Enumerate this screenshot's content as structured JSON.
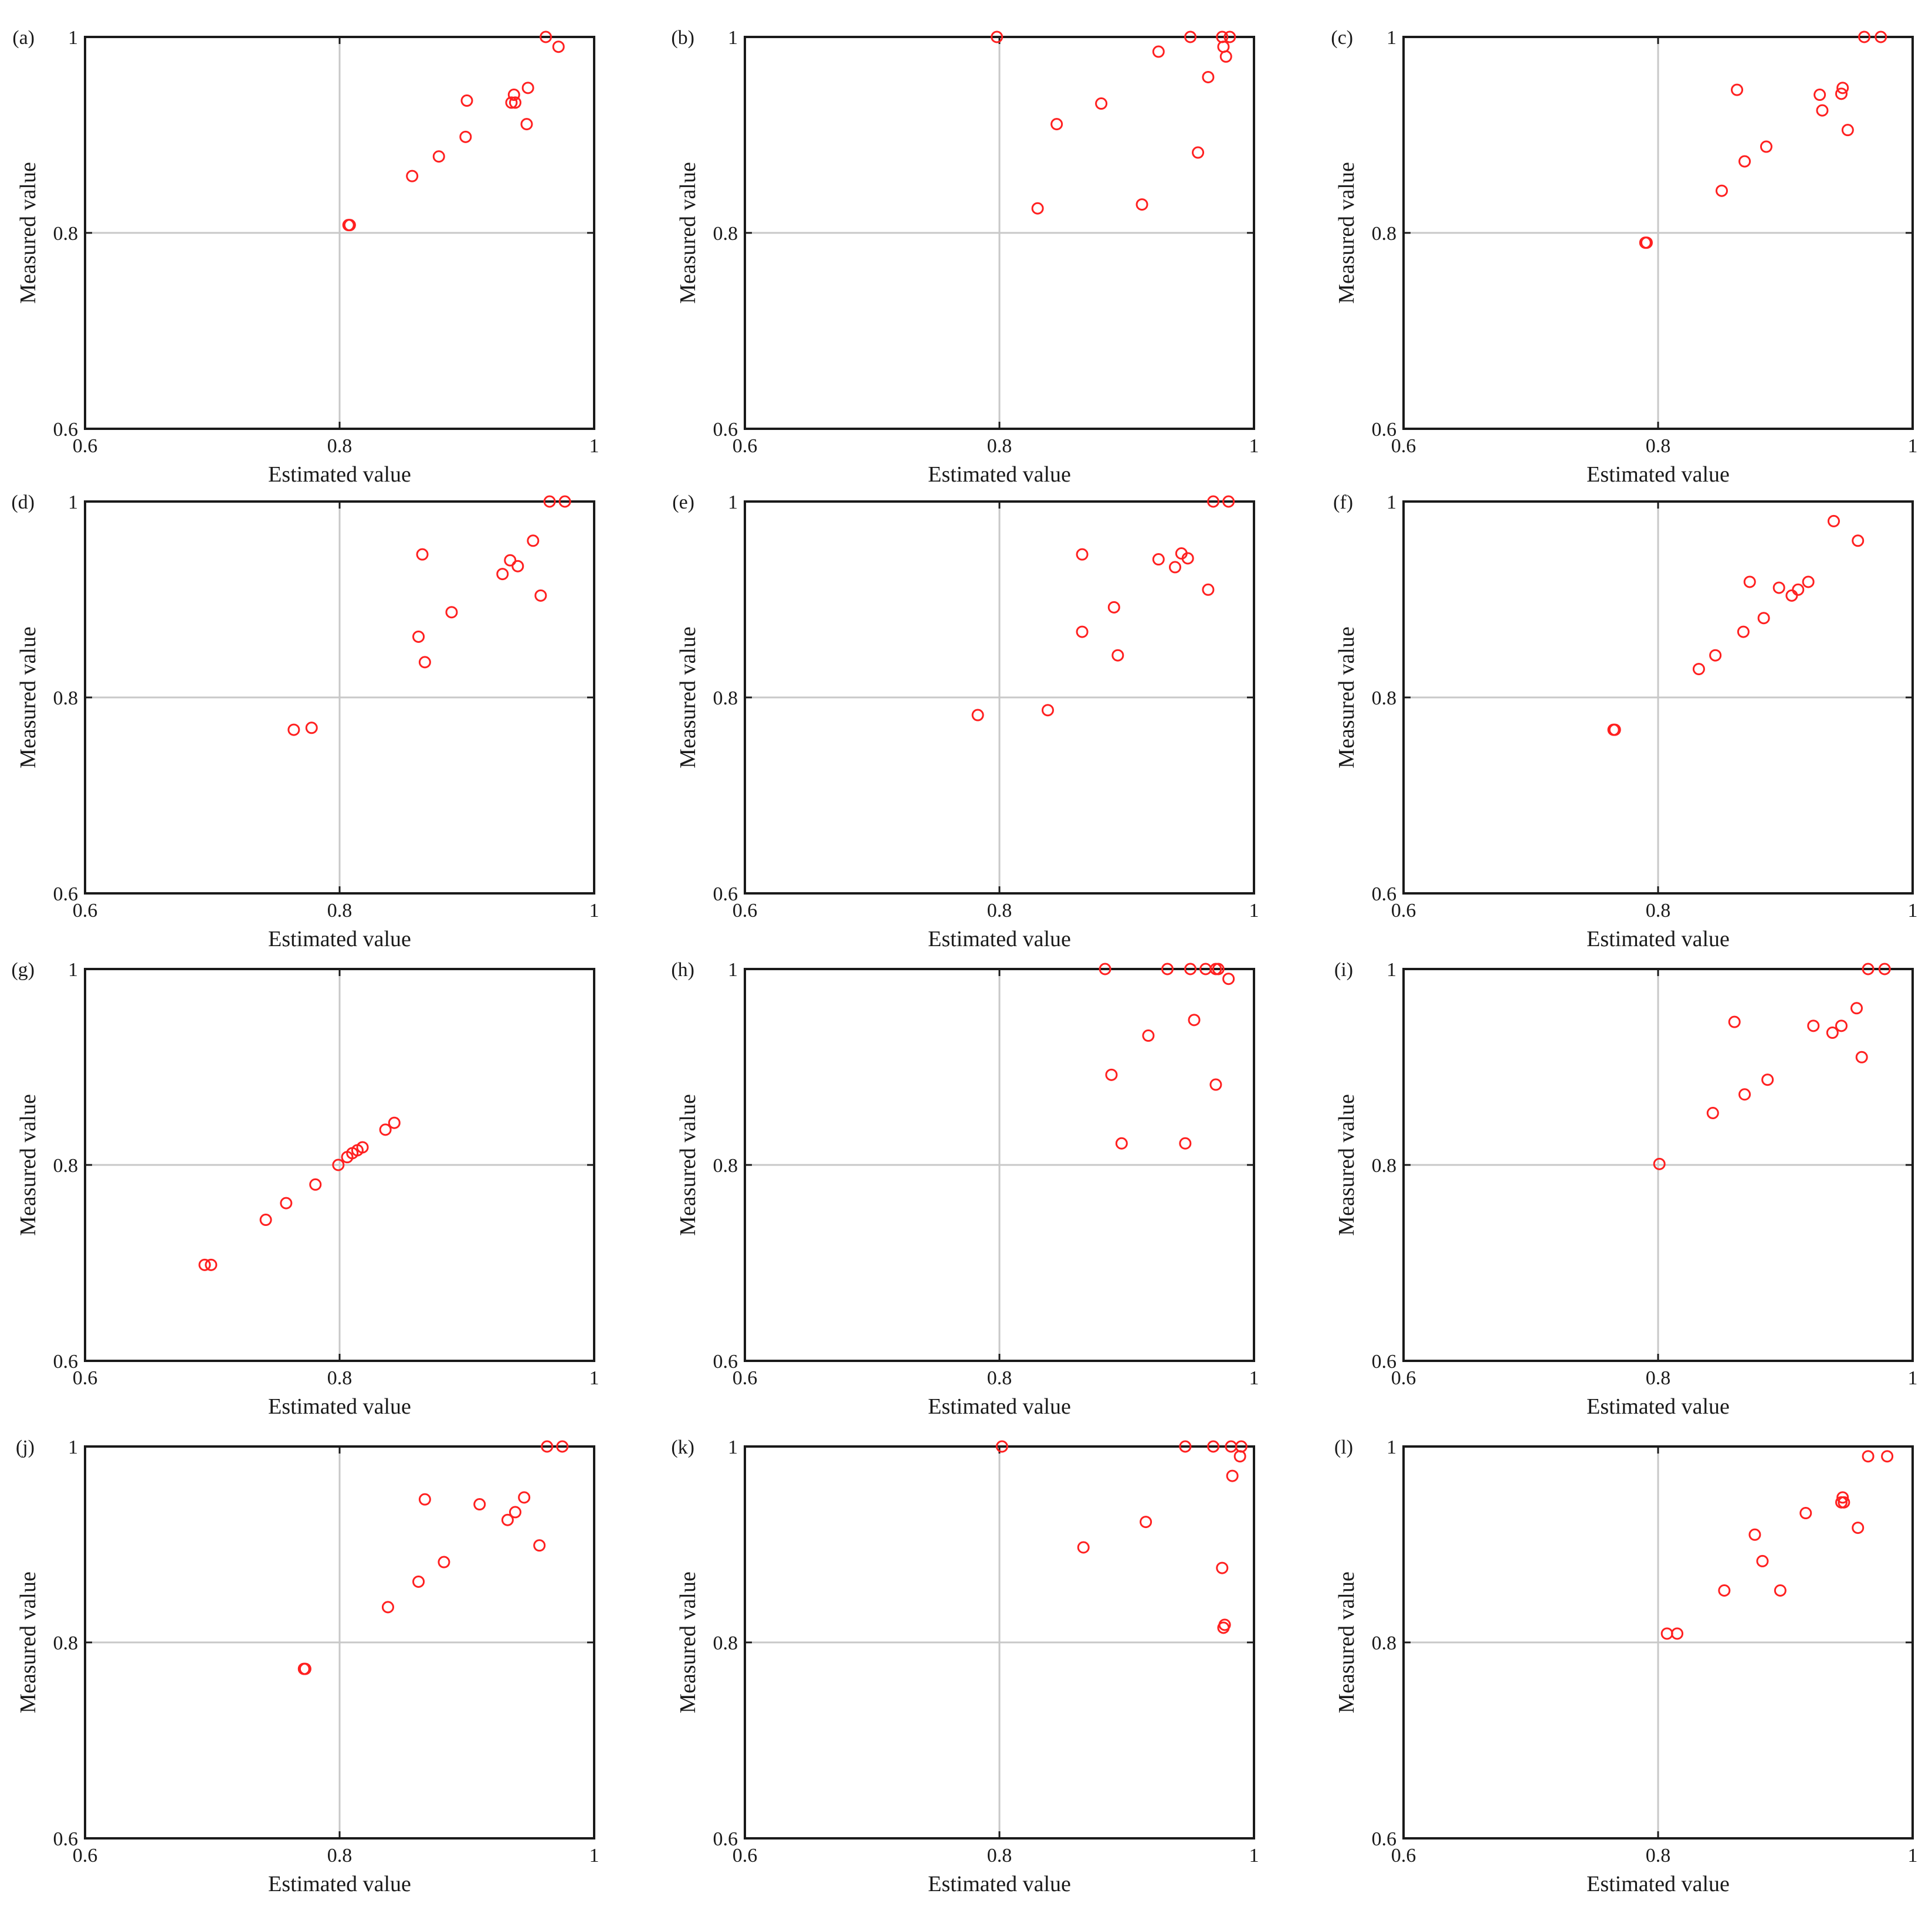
{
  "style": {
    "marker_color": "#ff2020",
    "grid_color": "#c8c8c8",
    "frame_color": "#1a1a1a"
  },
  "chart_data": [
    {
      "label": "(a)",
      "type": "scatter",
      "xlabel": "Estimated value",
      "ylabel": "Measured value",
      "xlim": [
        0.6,
        1
      ],
      "ylim": [
        0.6,
        1
      ],
      "xticks": [
        "0.6",
        "0.8",
        "1"
      ],
      "yticks": [
        "0.6",
        "0.8",
        "1"
      ],
      "grid": true,
      "x": [
        0.962,
        0.972,
        0.9,
        0.937,
        0.948,
        0.935,
        0.938,
        0.947,
        0.899,
        0.878,
        0.857,
        0.807,
        0.808
      ],
      "y": [
        1.0,
        0.99,
        0.935,
        0.941,
        0.948,
        0.933,
        0.933,
        0.911,
        0.898,
        0.878,
        0.858,
        0.808,
        0.808
      ]
    },
    {
      "label": "(b)",
      "type": "scatter",
      "xlabel": "Estimated value",
      "ylabel": "Measured value",
      "xlim": [
        0.6,
        1
      ],
      "ylim": [
        0.6,
        1
      ],
      "xticks": [
        "0.6",
        "0.8",
        "1"
      ],
      "yticks": [
        "0.6",
        "0.8",
        "1"
      ],
      "grid": true,
      "x": [
        0.798,
        0.95,
        0.975,
        0.981,
        0.976,
        0.978,
        0.925,
        0.964,
        0.88,
        0.845,
        0.956,
        0.83,
        0.912
      ],
      "y": [
        1.0,
        1.0,
        1.0,
        1.0,
        0.99,
        0.98,
        0.985,
        0.959,
        0.932,
        0.911,
        0.882,
        0.825,
        0.829
      ]
    },
    {
      "label": "(c)",
      "type": "scatter",
      "xlabel": "Estimated value",
      "ylabel": "Measured value",
      "xlim": [
        0.6,
        1
      ],
      "ylim": [
        0.6,
        1
      ],
      "xticks": [
        "0.6",
        "0.8",
        "1"
      ],
      "yticks": [
        "0.6",
        "0.8",
        "1"
      ],
      "grid": true,
      "x": [
        0.962,
        0.975,
        0.862,
        0.945,
        0.927,
        0.944,
        0.929,
        0.949,
        0.885,
        0.868,
        0.85,
        0.79,
        0.791
      ],
      "y": [
        1.0,
        1.0,
        0.946,
        0.948,
        0.941,
        0.942,
        0.925,
        0.905,
        0.888,
        0.873,
        0.843,
        0.79,
        0.79
      ]
    },
    {
      "label": "(d)",
      "type": "scatter",
      "xlabel": "Estimated value",
      "ylabel": "Measured value",
      "xlim": [
        0.6,
        1
      ],
      "ylim": [
        0.6,
        1
      ],
      "xticks": [
        "0.6",
        "0.8",
        "1"
      ],
      "yticks": [
        "0.6",
        "0.8",
        "1"
      ],
      "grid": true,
      "x": [
        0.965,
        0.977,
        0.865,
        0.952,
        0.934,
        0.94,
        0.928,
        0.958,
        0.888,
        0.862,
        0.867,
        0.764,
        0.778
      ],
      "y": [
        1.0,
        1.0,
        0.946,
        0.96,
        0.94,
        0.934,
        0.926,
        0.904,
        0.887,
        0.862,
        0.836,
        0.767,
        0.769
      ]
    },
    {
      "label": "(e)",
      "type": "scatter",
      "xlabel": "Estimated value",
      "ylabel": "Measured value",
      "xlim": [
        0.6,
        1
      ],
      "ylim": [
        0.6,
        1
      ],
      "xticks": [
        "0.6",
        "0.8",
        "1"
      ],
      "yticks": [
        "0.6",
        "0.8",
        "1"
      ],
      "grid": true,
      "x": [
        0.968,
        0.98,
        0.865,
        0.943,
        0.948,
        0.925,
        0.938,
        0.964,
        0.89,
        0.865,
        0.893,
        0.783,
        0.838
      ],
      "y": [
        1.0,
        1.0,
        0.946,
        0.947,
        0.942,
        0.941,
        0.933,
        0.91,
        0.892,
        0.867,
        0.843,
        0.782,
        0.787
      ]
    },
    {
      "label": "(f)",
      "type": "scatter",
      "xlabel": "Estimated value",
      "ylabel": "Measured value",
      "xlim": [
        0.6,
        1
      ],
      "ylim": [
        0.6,
        1
      ],
      "xticks": [
        "0.6",
        "0.8",
        "1"
      ],
      "yticks": [
        "0.6",
        "0.8",
        "1"
      ],
      "grid": true,
      "x": [
        0.938,
        0.957,
        0.872,
        0.918,
        0.895,
        0.91,
        0.905,
        0.883,
        0.867,
        0.845,
        0.832,
        0.766,
        0.765
      ],
      "y": [
        0.98,
        0.96,
        0.918,
        0.918,
        0.912,
        0.91,
        0.904,
        0.881,
        0.867,
        0.843,
        0.829,
        0.767,
        0.767
      ]
    },
    {
      "label": "(g)",
      "type": "scatter",
      "xlabel": "Estimated value",
      "ylabel": "Measured value",
      "xlim": [
        0.6,
        1
      ],
      "ylim": [
        0.6,
        1
      ],
      "xticks": [
        "0.6",
        "0.8",
        "1"
      ],
      "yticks": [
        "0.6",
        "0.8",
        "1"
      ],
      "grid": true,
      "x": [
        0.843,
        0.836,
        0.818,
        0.814,
        0.81,
        0.806,
        0.799,
        0.781,
        0.758,
        0.742,
        0.699,
        0.694
      ],
      "y": [
        0.843,
        0.836,
        0.818,
        0.815,
        0.812,
        0.808,
        0.8,
        0.78,
        0.761,
        0.744,
        0.698,
        0.698
      ]
    },
    {
      "label": "(h)",
      "type": "scatter",
      "xlabel": "Estimated value",
      "ylabel": "Measured value",
      "xlim": [
        0.6,
        1
      ],
      "ylim": [
        0.6,
        1
      ],
      "xticks": [
        "0.6",
        "0.8",
        "1"
      ],
      "yticks": [
        "0.6",
        "0.8",
        "1"
      ],
      "grid": true,
      "x": [
        0.883,
        0.932,
        0.95,
        0.962,
        0.97,
        0.972,
        0.98,
        0.953,
        0.917,
        0.888,
        0.97,
        0.896,
        0.946
      ],
      "y": [
        1.0,
        1.0,
        1.0,
        1.0,
        1.0,
        1.0,
        0.99,
        0.948,
        0.932,
        0.892,
        0.882,
        0.822,
        0.822
      ]
    },
    {
      "label": "(i)",
      "type": "scatter",
      "xlabel": "Estimated value",
      "ylabel": "Measured value",
      "xlim": [
        0.6,
        1
      ],
      "ylim": [
        0.6,
        1
      ],
      "xticks": [
        "0.6",
        "0.8",
        "1"
      ],
      "yticks": [
        "0.6",
        "0.8",
        "1"
      ],
      "grid": true,
      "x": [
        0.965,
        0.978,
        0.86,
        0.956,
        0.922,
        0.944,
        0.937,
        0.96,
        0.886,
        0.868,
        0.843,
        0.801
      ],
      "y": [
        1.0,
        1.0,
        0.946,
        0.96,
        0.942,
        0.942,
        0.935,
        0.91,
        0.887,
        0.872,
        0.853,
        0.801
      ]
    },
    {
      "label": "(j)",
      "type": "scatter",
      "xlabel": "Estimated value",
      "ylabel": "Measured value",
      "xlim": [
        0.6,
        1
      ],
      "ylim": [
        0.6,
        1
      ],
      "xticks": [
        "0.6",
        "0.8",
        "1"
      ],
      "yticks": [
        "0.6",
        "0.8",
        "1"
      ],
      "grid": true,
      "x": [
        0.963,
        0.975,
        0.867,
        0.945,
        0.91,
        0.938,
        0.932,
        0.957,
        0.882,
        0.862,
        0.838,
        0.772,
        0.773
      ],
      "y": [
        1.0,
        1.0,
        0.946,
        0.948,
        0.941,
        0.933,
        0.925,
        0.899,
        0.882,
        0.862,
        0.836,
        0.773,
        0.773
      ]
    },
    {
      "label": "(k)",
      "type": "scatter",
      "xlabel": "Estimated value",
      "ylabel": "Measured value",
      "xlim": [
        0.6,
        1
      ],
      "ylim": [
        0.6,
        1
      ],
      "xticks": [
        "0.6",
        "0.8",
        "1"
      ],
      "yticks": [
        "0.6",
        "0.8",
        "1"
      ],
      "grid": true,
      "x": [
        0.802,
        0.946,
        0.968,
        0.982,
        0.99,
        0.989,
        0.983,
        0.915,
        0.866,
        0.975,
        0.977,
        0.976
      ],
      "y": [
        1.0,
        1.0,
        1.0,
        1.0,
        1.0,
        0.99,
        0.97,
        0.923,
        0.897,
        0.876,
        0.818,
        0.815
      ]
    },
    {
      "label": "(l)",
      "type": "scatter",
      "xlabel": "Estimated value",
      "ylabel": "Measured value",
      "xlim": [
        0.6,
        1
      ],
      "ylim": [
        0.6,
        1
      ],
      "xticks": [
        "0.6",
        "0.8",
        "1"
      ],
      "yticks": [
        "0.6",
        "0.8",
        "1"
      ],
      "grid": true,
      "x": [
        0.965,
        0.98,
        0.945,
        0.944,
        0.946,
        0.916,
        0.957,
        0.876,
        0.882,
        0.852,
        0.896,
        0.807,
        0.815
      ],
      "y": [
        0.99,
        0.99,
        0.948,
        0.943,
        0.943,
        0.932,
        0.917,
        0.91,
        0.883,
        0.853,
        0.853,
        0.809,
        0.809
      ]
    }
  ]
}
